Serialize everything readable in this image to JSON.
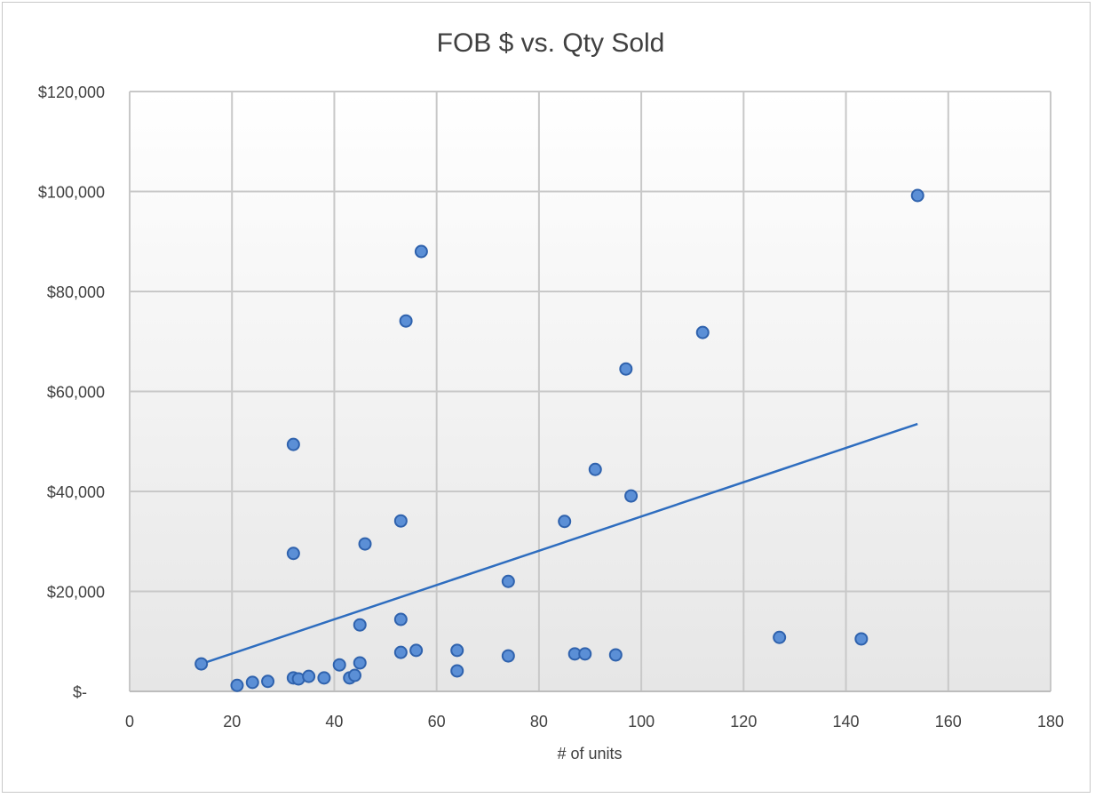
{
  "chart_data": {
    "type": "scatter",
    "title": "FOB $ vs. Qty Sold",
    "xlabel": "# of units",
    "ylabel": "",
    "xlim": [
      0,
      180
    ],
    "ylim": [
      0,
      120000
    ],
    "x_ticks": [
      0,
      20,
      40,
      60,
      80,
      100,
      120,
      140,
      160,
      180
    ],
    "x_tick_labels": [
      "0",
      "20",
      "40",
      "60",
      "80",
      "100",
      "120",
      "140",
      "160",
      "180"
    ],
    "y_ticks": [
      0,
      20000,
      40000,
      60000,
      80000,
      100000,
      120000
    ],
    "y_tick_labels": [
      "$-",
      "$20,000",
      "$40,000",
      "$60,000",
      "$80,000",
      "$100,000",
      "$120,000"
    ],
    "grid": true,
    "legend": "none",
    "colors": {
      "marker_fill": "#5b8fd6",
      "marker_stroke": "#2f62ad",
      "trendline": "#2e6dbf",
      "grid": "#c8c8c8"
    },
    "points": [
      [
        14,
        5500
      ],
      [
        21,
        1200
      ],
      [
        24,
        1800
      ],
      [
        27,
        2000
      ],
      [
        32,
        2700
      ],
      [
        33,
        2500
      ],
      [
        35,
        3000
      ],
      [
        38,
        2700
      ],
      [
        41,
        5300
      ],
      [
        43,
        2700
      ],
      [
        44,
        3200
      ],
      [
        45,
        5700
      ],
      [
        45,
        13300
      ],
      [
        46,
        29500
      ],
      [
        32,
        27600
      ],
      [
        32,
        49400
      ],
      [
        53,
        34100
      ],
      [
        53,
        14400
      ],
      [
        53,
        7800
      ],
      [
        54,
        74100
      ],
      [
        56,
        8200
      ],
      [
        57,
        88000
      ],
      [
        64,
        8200
      ],
      [
        64,
        4100
      ],
      [
        74,
        22000
      ],
      [
        74,
        7100
      ],
      [
        85,
        34000
      ],
      [
        87,
        7500
      ],
      [
        89,
        7500
      ],
      [
        91,
        44400
      ],
      [
        95,
        7300
      ],
      [
        97,
        64500
      ],
      [
        98,
        39100
      ],
      [
        112,
        71800
      ],
      [
        127,
        10800
      ],
      [
        143,
        10500
      ],
      [
        154,
        99200
      ]
    ],
    "trendline": {
      "type": "linear",
      "x": [
        14,
        154
      ],
      "y": [
        5500,
        53500
      ]
    }
  }
}
